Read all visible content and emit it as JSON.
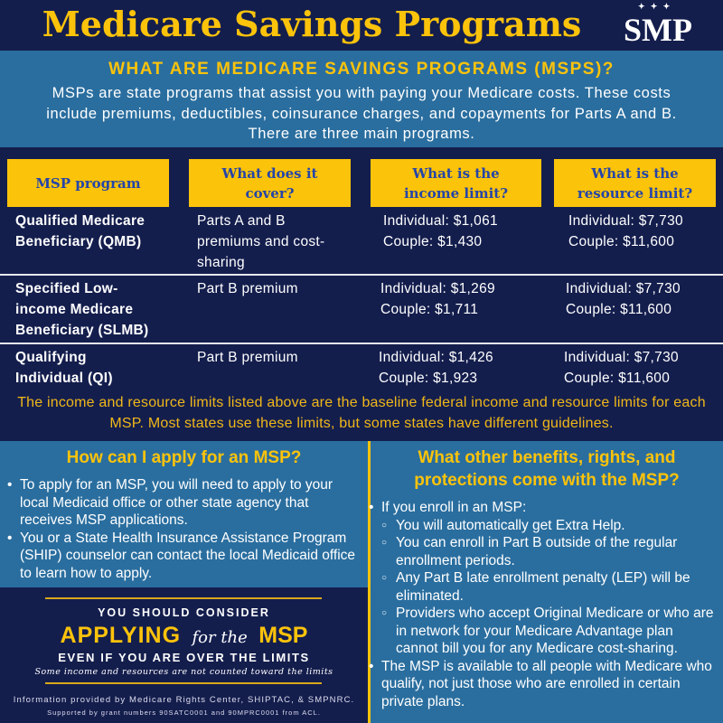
{
  "header": {
    "title": "Medicare Savings Programs",
    "logo": "SMP"
  },
  "intro": {
    "heading": "WHAT ARE MEDICARE SAVINGS PROGRAMS (MSPS)?",
    "text": "MSPs are state programs that assist you with paying your Medicare costs. These costs include premiums, deductibles, coinsurance charges, and copayments for Parts A and B. There are three main programs."
  },
  "table": {
    "headers": [
      "MSP program",
      "What does it cover?",
      "What is the income limit?",
      "What is the resource limit?"
    ],
    "rows": [
      {
        "program": "Qualified Medicare Beneficiary (QMB)",
        "covers": "Parts A and B premiums and cost-sharing",
        "income_ind": "Individual: $1,061",
        "income_cpl": "Couple: $1,430",
        "res_ind": "Individual: $7,730",
        "res_cpl": "Couple: $11,600"
      },
      {
        "program": "Specified Low-income Medicare Beneficiary (SLMB)",
        "covers": "Part B premium",
        "income_ind": "Individual: $1,269",
        "income_cpl": "Couple: $1,711",
        "res_ind": "Individual: $7,730",
        "res_cpl": "Couple: $11,600"
      },
      {
        "program": "Qualifying Individual (QI)",
        "covers": "Part B premium",
        "income_ind": "Individual: $1,426",
        "income_cpl": "Couple: $1,923",
        "res_ind": "Individual: $7,730",
        "res_cpl": "Couple: $11,600"
      }
    ]
  },
  "note": "The income and resource limits listed above are the baseline federal income and resource limits for each MSP. Most states use these limits, but some states have different guidelines.",
  "apply": {
    "heading": "How can I apply for an MSP?",
    "items": [
      "To apply for an MSP, you will need to apply to your local Medicaid office or other state agency that receives MSP applications.",
      "You or a State Health Insurance Assistance Program (SHIP) counselor can contact the local Medicaid office to learn how to apply."
    ]
  },
  "benefits": {
    "heading": "What other benefits, rights, and protections come with the MSP?",
    "intro": "If you enroll in an MSP:",
    "subitems": [
      "You will automatically get Extra Help.",
      "You can enroll in Part B outside of the regular enrollment periods.",
      "Any Part B late enrollment penalty (LEP) will be eliminated.",
      "Providers who accept Original Medicare or who are in network for your Medicare Advantage plan cannot bill you for any Medicare cost-sharing."
    ],
    "last": "The MSP is available to all people with Medicare who qualify, not just those who are enrolled in certain private plans."
  },
  "cta": {
    "line1": "YOU SHOULD CONSIDER",
    "applying": "APPLYING",
    "for_the": "for the",
    "msp": "MSP",
    "line3": "EVEN IF YOU ARE OVER THE LIMITS",
    "line4": "Some income and resources are not counted toward the limits"
  },
  "footer": {
    "credit": "Information provided by Medicare Rights Center, SHIPTAC, & SMPNRC.",
    "grant": "Supported by grant numbers 90SATC0001 and 90MPRC0001 from ACL."
  }
}
